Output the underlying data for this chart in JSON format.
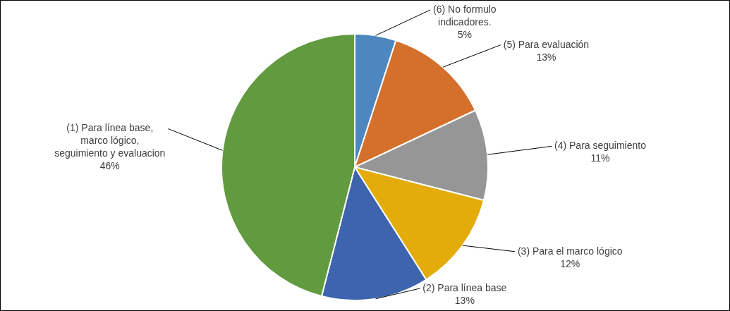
{
  "chart_data": {
    "type": "pie",
    "categories": [
      "(6) No formulo indicadores.",
      "(5) Para evaluación",
      "(4) Para seguimiento",
      "(3) Para el marco lógico",
      "(2) Para línea base",
      "(1) Para línea base, marco lógico, seguimiento y evaluacion"
    ],
    "values": [
      5,
      13,
      11,
      12,
      13,
      46
    ],
    "value_labels": [
      "5%",
      "13%",
      "11%",
      "12%",
      "13%",
      "46%"
    ],
    "colors": [
      "#4e86bf",
      "#d4702b",
      "#969696",
      "#e3ac0a",
      "#3d64ad",
      "#629a3f"
    ],
    "legend": false
  }
}
